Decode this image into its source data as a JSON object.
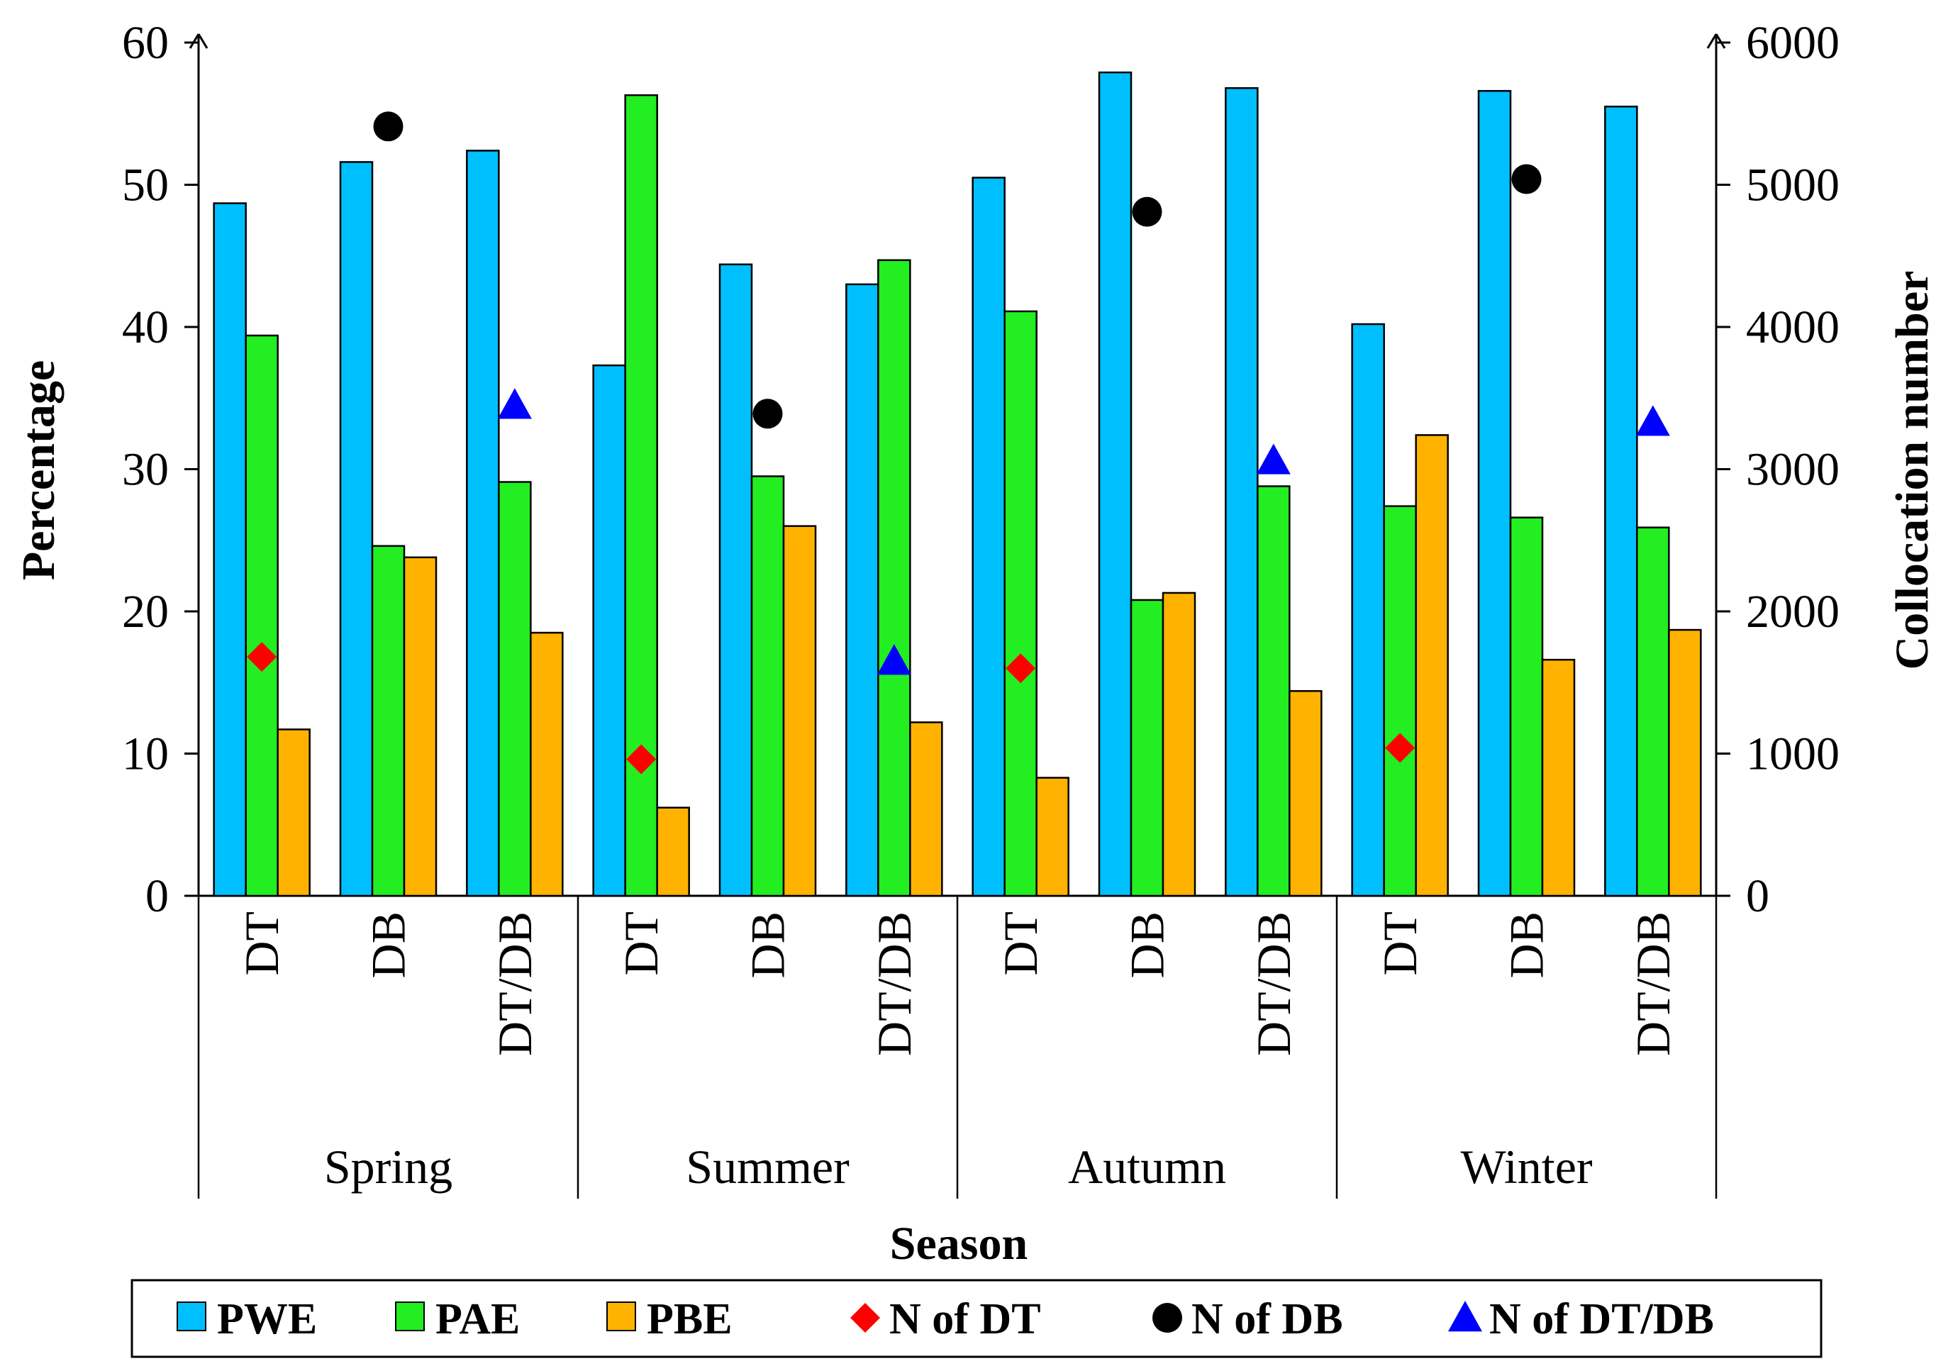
{
  "chart_data": {
    "type": "bar",
    "title": "",
    "xlabel": "Season",
    "ylabel": "Percentage",
    "y2label": "Collocation number",
    "ylim": [
      0,
      60
    ],
    "y2lim": [
      0,
      6000
    ],
    "yticks": [
      "0",
      "10",
      "20",
      "30",
      "40",
      "50",
      "60"
    ],
    "y2ticks": [
      "0",
      "1000",
      "2000",
      "3000",
      "4000",
      "5000",
      "6000"
    ],
    "groups": [
      "Spring",
      "Summer",
      "Autumn",
      "Winter"
    ],
    "categories": [
      "DT",
      "DB",
      "DT/DB",
      "DT",
      "DB",
      "DT/DB",
      "DT",
      "DB",
      "DT/DB",
      "DT",
      "DB",
      "DT/DB"
    ],
    "series": [
      {
        "name": "PWE",
        "axis": "left",
        "kind": "bar",
        "color": "#00bfff",
        "values": [
          48.7,
          51.6,
          52.4,
          37.3,
          44.4,
          43.0,
          50.5,
          57.9,
          56.8,
          40.2,
          56.6,
          55.5
        ]
      },
      {
        "name": "PAE",
        "axis": "left",
        "kind": "bar",
        "color": "#22ee22",
        "values": [
          39.4,
          24.6,
          29.1,
          56.3,
          29.5,
          44.7,
          41.1,
          20.8,
          28.8,
          27.4,
          26.6,
          25.9
        ]
      },
      {
        "name": "PBE",
        "axis": "left",
        "kind": "bar",
        "color": "#ffb300",
        "values": [
          11.7,
          23.8,
          18.5,
          6.2,
          26.0,
          12.2,
          8.3,
          21.3,
          14.4,
          32.4,
          16.6,
          18.7
        ]
      },
      {
        "name": "N of DT",
        "axis": "right",
        "kind": "marker",
        "shape": "diamond",
        "color": "#ff0000",
        "values": [
          1680,
          null,
          null,
          960,
          null,
          null,
          1600,
          null,
          null,
          1040,
          null,
          null
        ]
      },
      {
        "name": "N of DB",
        "axis": "right",
        "kind": "marker",
        "shape": "circle",
        "color": "#000000",
        "values": [
          null,
          5410,
          null,
          null,
          3390,
          null,
          null,
          4810,
          null,
          null,
          5040,
          null
        ]
      },
      {
        "name": "N of DT/DB",
        "axis": "right",
        "kind": "marker",
        "shape": "triangle",
        "color": "#0000ff",
        "values": [
          null,
          null,
          3450,
          null,
          null,
          1650,
          null,
          null,
          3060,
          null,
          null,
          3330
        ]
      }
    ],
    "legend_position": "bottom"
  }
}
